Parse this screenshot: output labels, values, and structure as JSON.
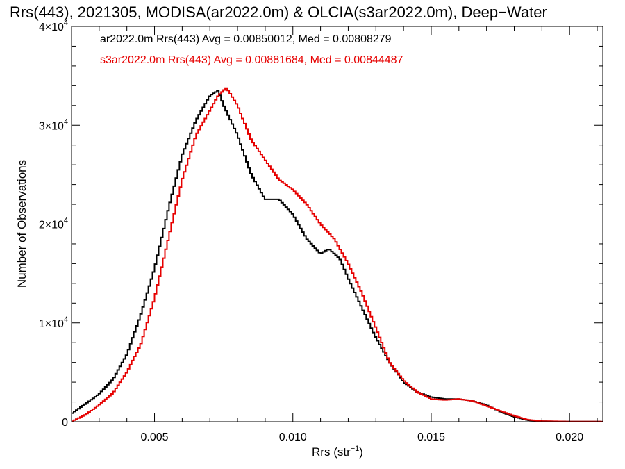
{
  "chart_data": {
    "type": "line",
    "title": "Rrs(443), 2021305, MODISA(ar2022.0m) & OLCIA(s3ar2022.0m), Deep−Water",
    "xlabel": "Rrs (str",
    "xlabel_exp": "−1",
    "xlabel_end": ")",
    "ylabel": "Number of Observations",
    "xlim": [
      0.002,
      0.0212
    ],
    "ylim": [
      0,
      40000
    ],
    "grid": false,
    "legend_position": "top-left",
    "x_ticks": [
      {
        "value": 0.005,
        "label": "0.005"
      },
      {
        "value": 0.01,
        "label": "0.010"
      },
      {
        "value": 0.015,
        "label": "0.015"
      },
      {
        "value": 0.02,
        "label": "0.020"
      }
    ],
    "y_ticks": [
      {
        "value": 0,
        "mant": "0",
        "exp": ""
      },
      {
        "value": 10000,
        "mant": "1×10",
        "exp": "4"
      },
      {
        "value": 20000,
        "mant": "2×10",
        "exp": "4"
      },
      {
        "value": 30000,
        "mant": "3×10",
        "exp": "4"
      },
      {
        "value": 40000,
        "mant": "4×10",
        "exp": "4"
      }
    ],
    "series": [
      {
        "name": "ar2022.0m Rrs(443)",
        "color": "#000000",
        "legend": "ar2022.0m Rrs(443) Avg = 0.00850012, Med = 0.00808279",
        "points": [
          [
            0.002,
            800
          ],
          [
            0.0025,
            1800
          ],
          [
            0.003,
            2800
          ],
          [
            0.0035,
            4300
          ],
          [
            0.004,
            6800
          ],
          [
            0.0045,
            10800
          ],
          [
            0.005,
            15500
          ],
          [
            0.0055,
            21500
          ],
          [
            0.006,
            27000
          ],
          [
            0.0065,
            30500
          ],
          [
            0.007,
            33000
          ],
          [
            0.0073,
            33500
          ],
          [
            0.0075,
            32000
          ],
          [
            0.008,
            29000
          ],
          [
            0.0085,
            25000
          ],
          [
            0.009,
            22500
          ],
          [
            0.0095,
            22500
          ],
          [
            0.01,
            21000
          ],
          [
            0.0105,
            18500
          ],
          [
            0.011,
            17000
          ],
          [
            0.0113,
            17500
          ],
          [
            0.0117,
            16500
          ],
          [
            0.012,
            14500
          ],
          [
            0.0125,
            11500
          ],
          [
            0.013,
            8500
          ],
          [
            0.0135,
            6000
          ],
          [
            0.014,
            4000
          ],
          [
            0.0145,
            3000
          ],
          [
            0.015,
            2500
          ],
          [
            0.0155,
            2300
          ],
          [
            0.016,
            2300
          ],
          [
            0.0165,
            2100
          ],
          [
            0.017,
            1700
          ],
          [
            0.0175,
            1000
          ],
          [
            0.018,
            500
          ],
          [
            0.0185,
            150
          ],
          [
            0.019,
            50
          ],
          [
            0.02,
            20
          ],
          [
            0.0212,
            10
          ]
        ]
      },
      {
        "name": "s3ar2022.0m Rrs(443)",
        "color": "#e60000",
        "legend": "s3ar2022.0m Rrs(443) Avg = 0.00881684, Med = 0.00844487",
        "points": [
          [
            0.002,
            0
          ],
          [
            0.0025,
            700
          ],
          [
            0.003,
            1700
          ],
          [
            0.0035,
            2900
          ],
          [
            0.004,
            5000
          ],
          [
            0.0045,
            7800
          ],
          [
            0.005,
            12500
          ],
          [
            0.0055,
            18500
          ],
          [
            0.006,
            24500
          ],
          [
            0.0065,
            29000
          ],
          [
            0.007,
            31500
          ],
          [
            0.0073,
            33000
          ],
          [
            0.0076,
            33800
          ],
          [
            0.008,
            32000
          ],
          [
            0.0085,
            28500
          ],
          [
            0.009,
            26500
          ],
          [
            0.0095,
            24500
          ],
          [
            0.01,
            23500
          ],
          [
            0.0105,
            22000
          ],
          [
            0.011,
            20000
          ],
          [
            0.0115,
            18500
          ],
          [
            0.012,
            16000
          ],
          [
            0.0125,
            13000
          ],
          [
            0.013,
            9500
          ],
          [
            0.0135,
            6000
          ],
          [
            0.014,
            4200
          ],
          [
            0.0145,
            3000
          ],
          [
            0.015,
            2300
          ],
          [
            0.0155,
            2200
          ],
          [
            0.016,
            2300
          ],
          [
            0.0165,
            2100
          ],
          [
            0.017,
            1600
          ],
          [
            0.0175,
            1100
          ],
          [
            0.018,
            600
          ],
          [
            0.0185,
            200
          ],
          [
            0.019,
            60
          ],
          [
            0.02,
            20
          ],
          [
            0.0212,
            10
          ]
        ]
      }
    ]
  }
}
